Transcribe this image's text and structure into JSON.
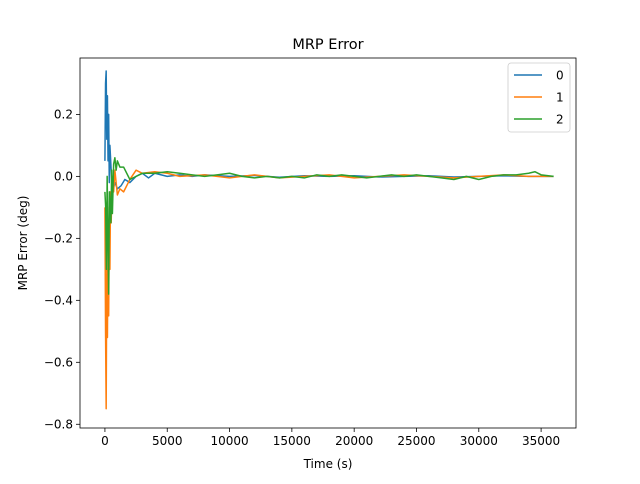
{
  "chart_data": {
    "type": "line",
    "title": "MRP Error",
    "xlabel": "Time (s)",
    "ylabel": "MRP Error (deg)",
    "xlim": [
      -2000,
      37800
    ],
    "ylim": [
      -0.812,
      0.382
    ],
    "xticks": [
      0,
      5000,
      10000,
      15000,
      20000,
      25000,
      30000,
      35000
    ],
    "xtick_labels": [
      "0",
      "5000",
      "10000",
      "15000",
      "20000",
      "25000",
      "30000",
      "35000"
    ],
    "yticks": [
      -0.8,
      -0.6,
      -0.4,
      -0.2,
      0.0,
      0.2
    ],
    "ytick_labels": [
      "−0.8",
      "−0.6",
      "−0.4",
      "−0.2",
      "0.0",
      "0.2"
    ],
    "grid": false,
    "legend": "top-right",
    "series": [
      {
        "name": "0",
        "color": "#1f77b4",
        "x": [
          0,
          50,
          100,
          150,
          200,
          250,
          300,
          350,
          400,
          500,
          600,
          800,
          1000,
          1300,
          1600,
          2000,
          2500,
          3000,
          3500,
          4000,
          5000,
          6000,
          7000,
          8000,
          10000,
          12000,
          14000,
          16000,
          18000,
          20000,
          22000,
          24000,
          26000,
          28000,
          30000,
          32000,
          34000,
          36000
        ],
        "values": [
          0.05,
          0.3,
          0.34,
          0.12,
          0.26,
          0.05,
          0.2,
          -0.02,
          0.1,
          0.02,
          -0.05,
          -0.02,
          -0.04,
          -0.03,
          -0.01,
          -0.02,
          0.0,
          0.01,
          -0.005,
          0.01,
          0.0,
          0.005,
          0.0,
          0.005,
          0.0,
          0.003,
          -0.003,
          0.002,
          0.0,
          0.002,
          -0.002,
          0.0,
          0.002,
          -0.002,
          0.0,
          0.002,
          0.0,
          0.0
        ]
      },
      {
        "name": "1",
        "color": "#ff7f0e",
        "x": [
          0,
          50,
          100,
          150,
          200,
          250,
          300,
          350,
          400,
          450,
          500,
          600,
          700,
          800,
          1000,
          1200,
          1500,
          2000,
          2500,
          3000,
          4000,
          5000,
          6000,
          8000,
          10000,
          12000,
          14000,
          16000,
          18000,
          20000,
          22000,
          24000,
          26000,
          28000,
          30000,
          32000,
          34000,
          36000
        ],
        "values": [
          -0.1,
          -0.5,
          -0.75,
          -0.3,
          -0.52,
          -0.2,
          -0.45,
          -0.1,
          -0.3,
          -0.05,
          -0.15,
          0.0,
          -0.05,
          0.02,
          -0.06,
          -0.04,
          -0.05,
          -0.01,
          0.02,
          0.01,
          0.015,
          0.01,
          0.0,
          0.005,
          -0.005,
          0.005,
          -0.005,
          0.0,
          0.005,
          -0.005,
          0.0,
          0.005,
          0.0,
          -0.005,
          0.0,
          0.005,
          0.0,
          0.0
        ]
      },
      {
        "name": "2",
        "color": "#2ca02c",
        "x": [
          0,
          60,
          120,
          180,
          240,
          300,
          360,
          420,
          480,
          540,
          600,
          700,
          800,
          900,
          1000,
          1200,
          1500,
          2000,
          2500,
          3000,
          4000,
          5000,
          6000,
          7000,
          8000,
          9000,
          10000,
          11000,
          12000,
          13000,
          14000,
          15000,
          16000,
          17000,
          18000,
          19000,
          20000,
          21000,
          22000,
          23000,
          24000,
          25000,
          26000,
          27000,
          28000,
          29000,
          30000,
          31000,
          32000,
          33000,
          34000,
          34500,
          35000,
          36000
        ],
        "values": [
          -0.05,
          -0.1,
          -0.3,
          0.0,
          -0.2,
          -0.38,
          -0.05,
          -0.1,
          -0.15,
          0.02,
          -0.12,
          0.04,
          0.06,
          0.02,
          0.05,
          0.03,
          0.03,
          -0.01,
          0.0,
          0.01,
          0.01,
          0.015,
          0.01,
          0.005,
          0.0,
          0.005,
          0.01,
          0.0,
          -0.005,
          0.0,
          -0.005,
          0.0,
          -0.005,
          0.005,
          0.0,
          0.005,
          0.0,
          -0.005,
          0.0,
          0.005,
          0.0,
          0.005,
          0.0,
          -0.005,
          -0.01,
          0.0,
          -0.01,
          0.0,
          0.005,
          0.005,
          0.01,
          0.015,
          0.005,
          0.0
        ]
      }
    ]
  }
}
